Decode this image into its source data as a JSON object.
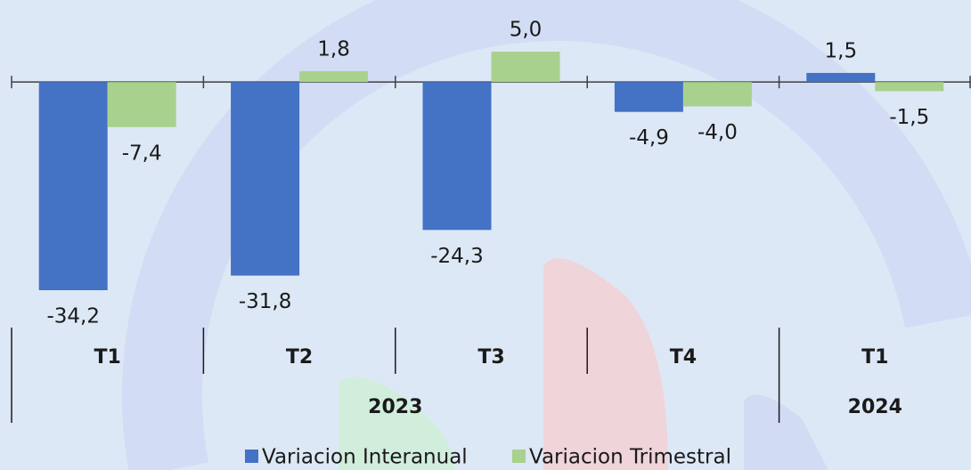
{
  "chart_data": {
    "type": "bar",
    "categories": [
      "T1",
      "T2",
      "T3",
      "T4",
      "T1"
    ],
    "groups": [
      {
        "label": "2023",
        "count": 4
      },
      {
        "label": "2024",
        "count": 1
      }
    ],
    "series": [
      {
        "name": "Variacion Interanual",
        "color": "#4472c4",
        "values": [
          -34.2,
          -31.8,
          -24.3,
          -4.9,
          1.5
        ],
        "value_labels": [
          "-34,2",
          "-31,8",
          "-24,3",
          "-4,9",
          "1,5"
        ]
      },
      {
        "name": "Variacion Trimestral",
        "color": "#a9d18e",
        "values": [
          -7.4,
          1.8,
          5.0,
          -4.0,
          -1.5
        ],
        "value_labels": [
          "-7,4",
          "1,8",
          "5,0",
          "-4,0",
          "-1,5"
        ]
      }
    ],
    "legend": "bottom"
  }
}
